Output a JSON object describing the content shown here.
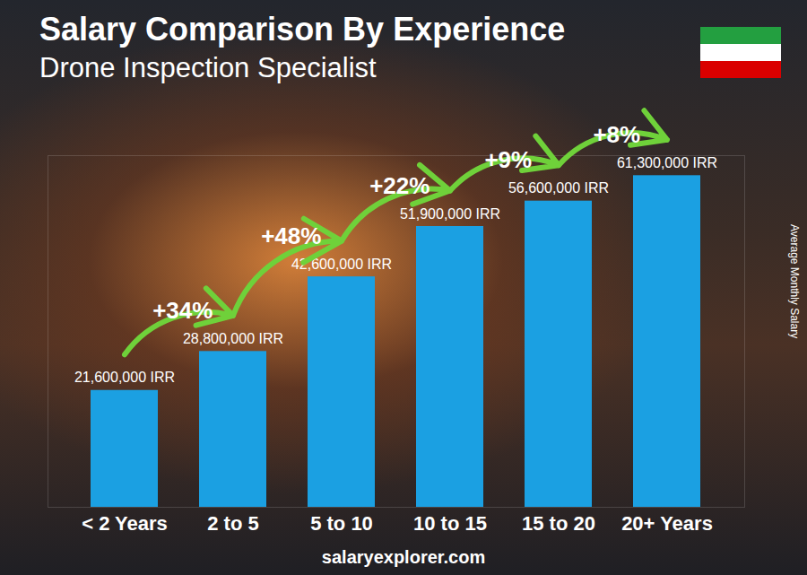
{
  "chart_data": {
    "type": "bar",
    "title": "Salary Comparison By Experience",
    "subtitle": "Drone Inspection Specialist",
    "categories": [
      "< 2 Years",
      "2 to 5",
      "5 to 10",
      "10 to 15",
      "15 to 20",
      "20+ Years"
    ],
    "values": [
      21600000,
      28800000,
      42600000,
      51900000,
      56600000,
      61300000
    ],
    "value_labels": [
      "21,600,000 IRR",
      "28,800,000 IRR",
      "42,600,000 IRR",
      "51,900,000 IRR",
      "56,600,000 IRR",
      "61,300,000 IRR"
    ],
    "data_labels": true,
    "color": "#1ba0e2",
    "ylabel": "Average Monthly Salary",
    "ylim": [
      0,
      65000000
    ],
    "tick_labels": "x",
    "annotations": [
      {
        "text": "+34%",
        "from": "< 2 Years",
        "to": "2 to 5"
      },
      {
        "text": "+48%",
        "from": "2 to 5",
        "to": "5 to 10"
      },
      {
        "text": "+22%",
        "from": "5 to 10",
        "to": "10 to 15"
      },
      {
        "text": "+9%",
        "from": "10 to 15",
        "to": "15 to 20"
      },
      {
        "text": "+8%",
        "from": "15 to 20",
        "to": "20+ Years"
      }
    ],
    "source": "salaryexplorer.com"
  }
}
